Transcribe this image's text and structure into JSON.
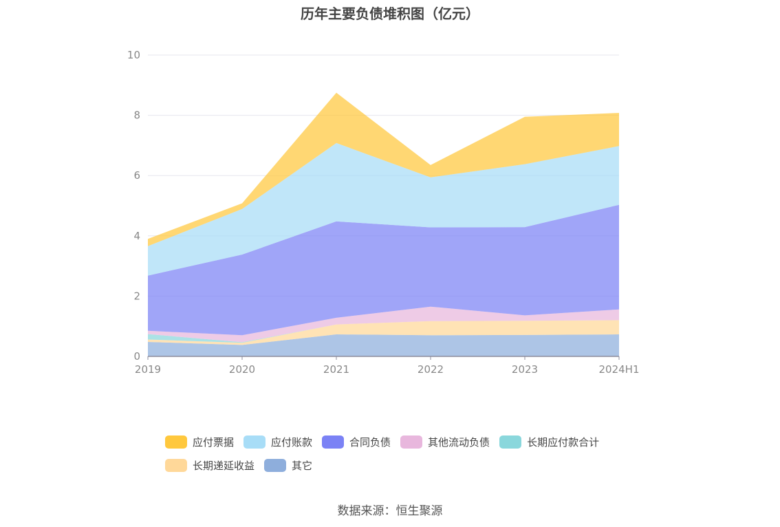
{
  "chart_data": {
    "type": "area",
    "stacked": true,
    "title": "历年主要负债堆积图（亿元）",
    "categories": [
      "2019",
      "2020",
      "2021",
      "2022",
      "2023",
      "2024H1"
    ],
    "ylim": [
      0,
      10
    ],
    "yticks": [
      "0",
      "2",
      "4",
      "6",
      "8",
      "10"
    ],
    "grid": true,
    "legend_position": "bottom",
    "series": [
      {
        "name": "其它",
        "color": "#8eaedc",
        "values": [
          0.48,
          0.38,
          0.73,
          0.7,
          0.71,
          0.73
        ]
      },
      {
        "name": "长期递延收益",
        "color": "#ffd899",
        "values": [
          0.08,
          0.07,
          0.33,
          0.47,
          0.47,
          0.47
        ]
      },
      {
        "name": "长期应付款合计",
        "color": "#8ad7dc",
        "values": [
          0.18,
          0.02,
          0.0,
          0.0,
          0.0,
          0.0
        ]
      },
      {
        "name": "其他流动负债",
        "color": "#e8b7dd",
        "values": [
          0.11,
          0.23,
          0.22,
          0.48,
          0.18,
          0.36
        ]
      },
      {
        "name": "合同负债",
        "color": "#7b82f5",
        "values": [
          1.83,
          2.68,
          3.2,
          2.63,
          2.93,
          3.47
        ]
      },
      {
        "name": "应付账款",
        "color": "#a8ddf7",
        "values": [
          0.98,
          1.51,
          2.6,
          1.66,
          2.09,
          1.95
        ]
      },
      {
        "name": "应付票据",
        "color": "#ffc83d",
        "values": [
          0.24,
          0.19,
          1.67,
          0.41,
          1.57,
          1.1
        ]
      }
    ],
    "legend_order": [
      "应付票据",
      "应付账款",
      "合同负债",
      "其他流动负债",
      "长期应付款合计",
      "长期递延收益",
      "其它"
    ],
    "source_note": "数据来源：恒生聚源"
  }
}
